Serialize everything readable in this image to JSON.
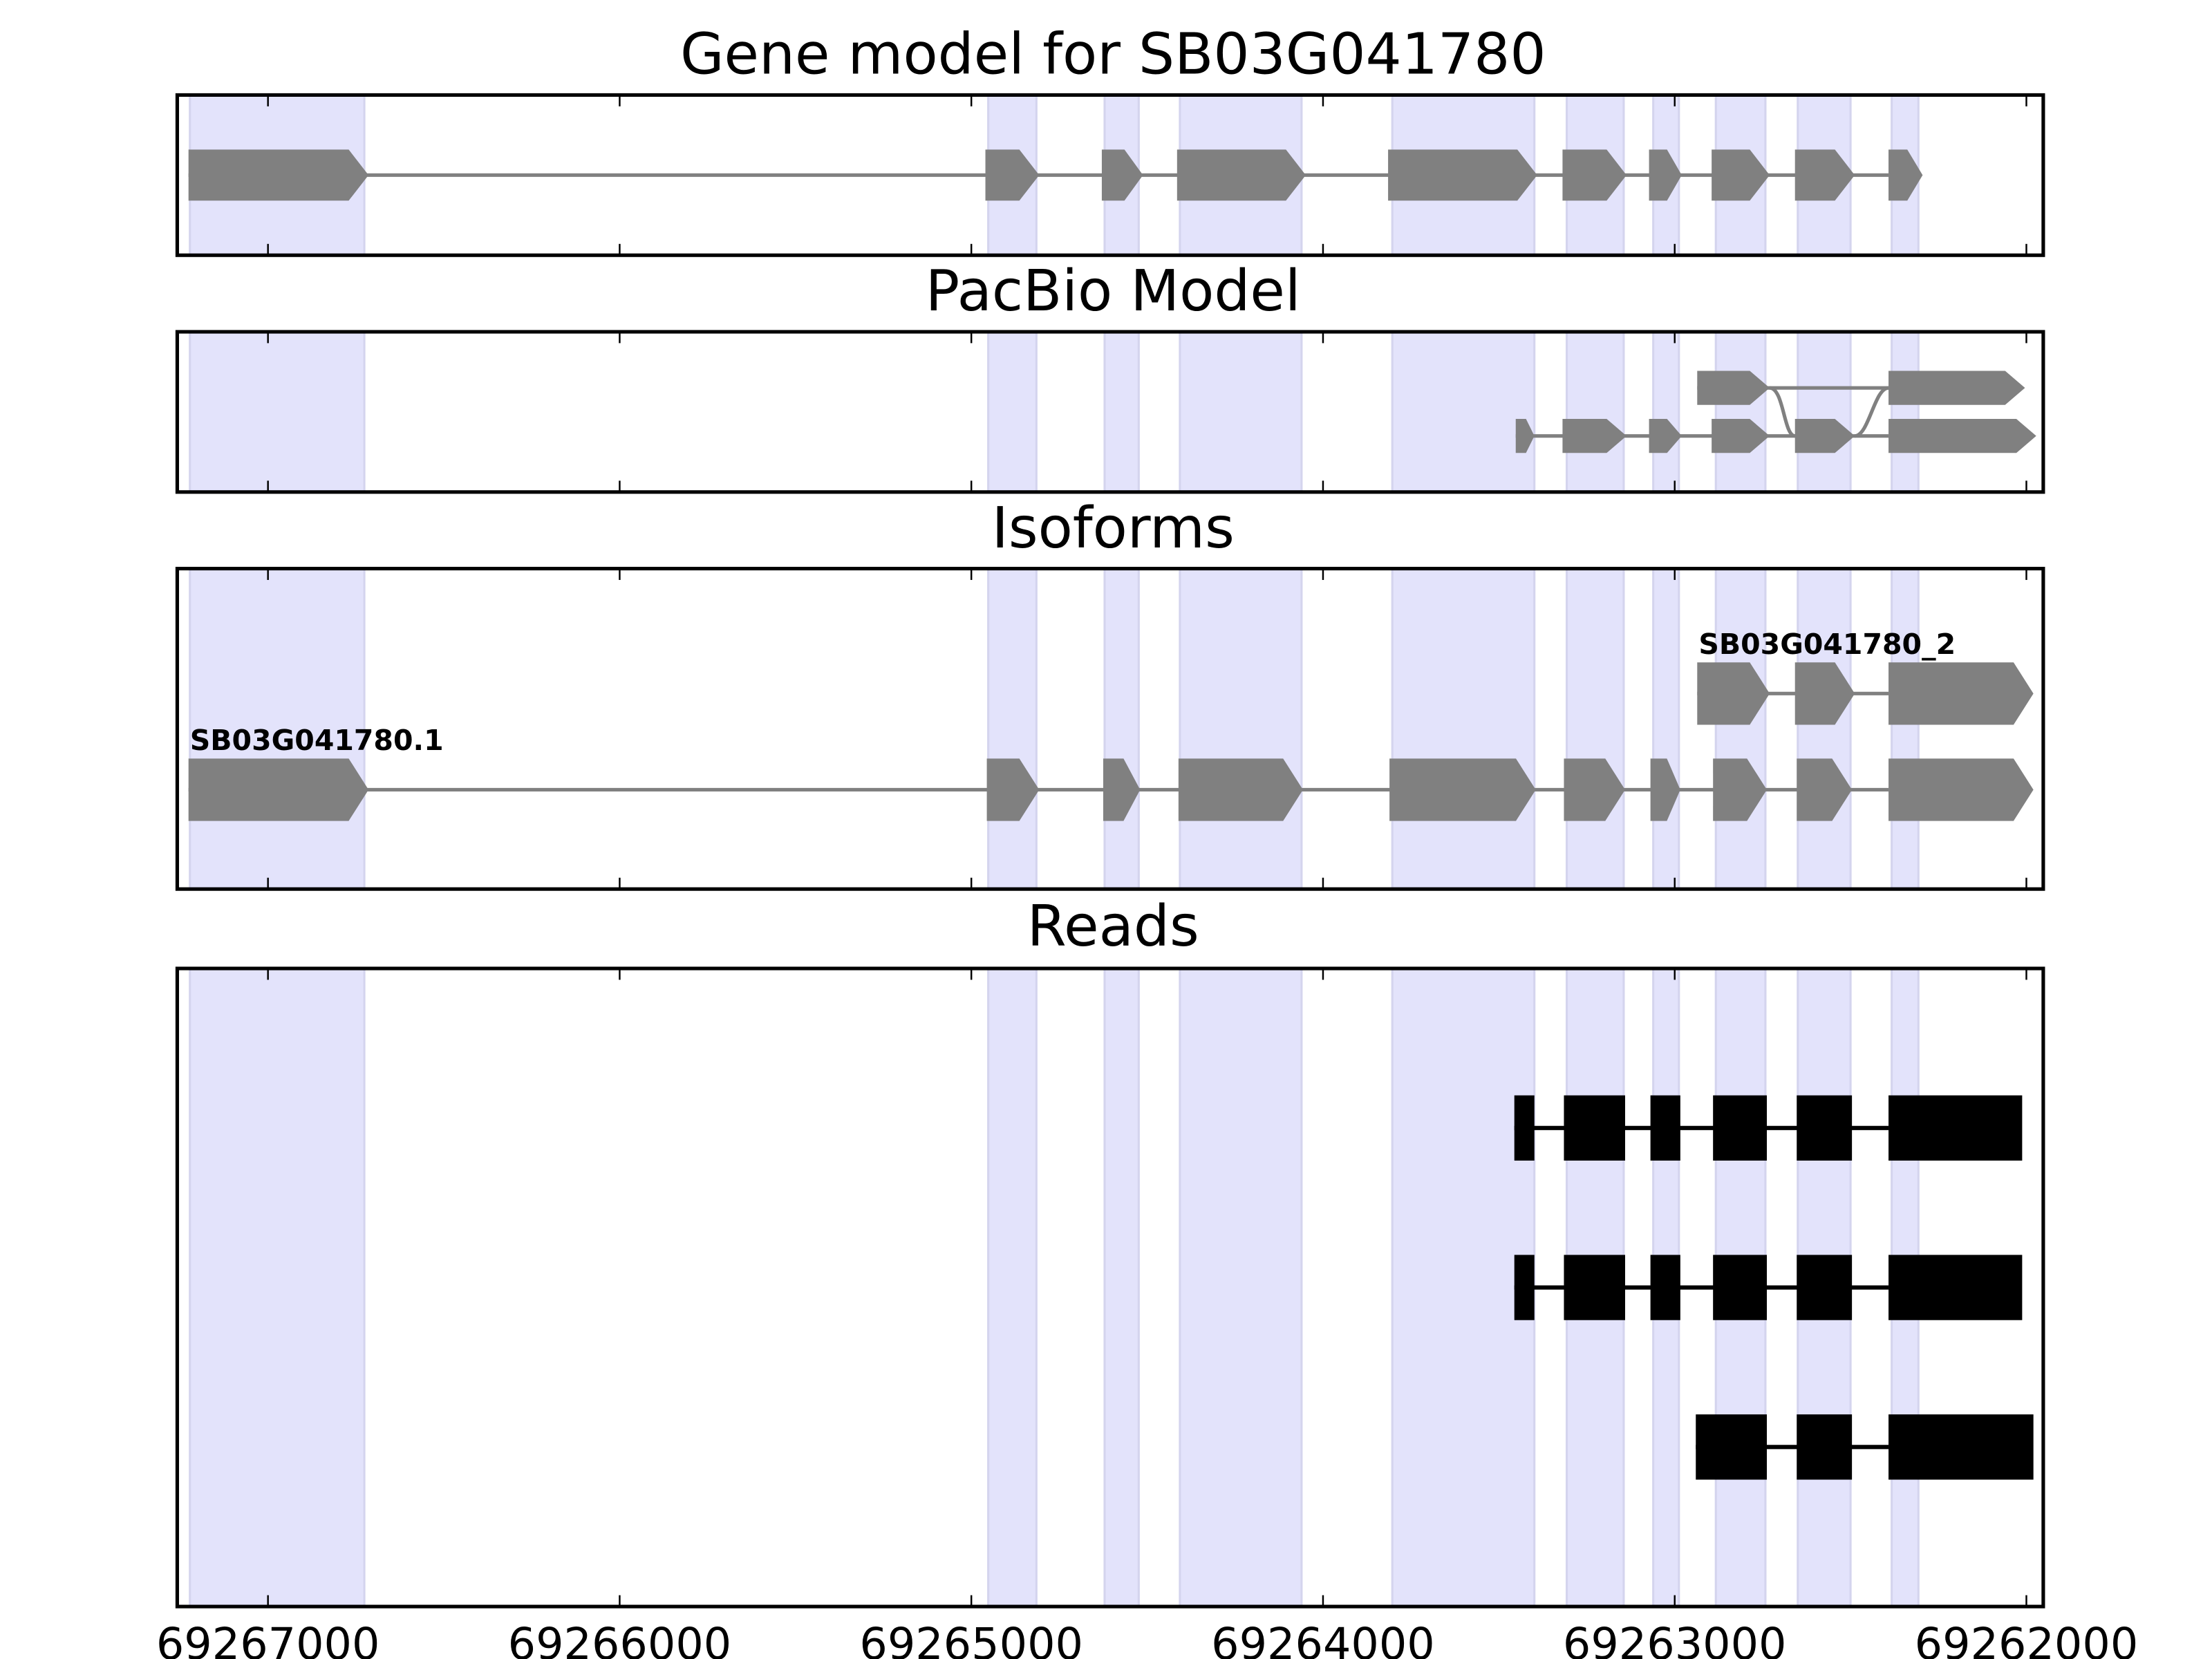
{
  "chart_data": {
    "type": "gene-track",
    "xlim": [
      69267258,
      69261952
    ],
    "x_reversed": true,
    "xticks": [
      69267000,
      69266000,
      69265000,
      69264000,
      69263000,
      69262000
    ],
    "xtick_labels": [
      "69267000",
      "69266000",
      "69265000",
      "69264000",
      "69263000",
      "69262000"
    ],
    "colors": {
      "shade": "#e3e3fb",
      "shade_edge": "#d4d4ee",
      "feature": "#808080",
      "read": "#000000",
      "frame": "#000000"
    },
    "shaded_regions": [
      [
        69267222,
        69266726
      ],
      [
        69264952,
        69264815
      ],
      [
        69264621,
        69264524
      ],
      [
        69264407,
        69264061
      ],
      [
        69263803,
        69263399
      ],
      [
        69263307,
        69263145
      ],
      [
        69263061,
        69262988
      ],
      [
        69262883,
        69262742
      ],
      [
        69262650,
        69262500
      ],
      [
        69262383,
        69262307
      ]
    ],
    "panels": [
      {
        "title": "Gene model for SB03G041780",
        "kind": "arrows",
        "tracks": [
          {
            "label": "",
            "row": 0.5,
            "exons": [
              [
                69267226,
                69266714
              ],
              [
                69264960,
                69264807
              ],
              [
                69264629,
                69264512
              ],
              [
                69264415,
                69264049
              ],
              [
                69263815,
                69263391
              ],
              [
                69263319,
                69263137
              ],
              [
                69263073,
                69262980
              ],
              [
                69262895,
                69262730
              ],
              [
                69262658,
                69262488
              ],
              [
                69262392,
                69262295
              ]
            ]
          }
        ]
      },
      {
        "title": "PacBio Model",
        "kind": "arrows",
        "tracks": [
          {
            "label": "",
            "row": 0.35,
            "exons": [
              [
                69262936,
                69262730
              ],
              [
                69262392,
                69262004
              ]
            ],
            "joins_lower_exon": [
              69262658,
              69262488
            ]
          },
          {
            "label": "",
            "row": 0.65,
            "exons": [
              [
                69263452,
                69263399
              ],
              [
                69263319,
                69263137
              ],
              [
                69263073,
                69262980
              ],
              [
                69262895,
                69262730
              ],
              [
                69262658,
                69262488
              ],
              [
                69262392,
                69261972
              ]
            ]
          }
        ]
      },
      {
        "title": "Isoforms",
        "kind": "arrows",
        "tracks": [
          {
            "label": "SB03G041780_2",
            "row": 0.39,
            "exons": [
              [
                69262936,
                69262730
              ],
              [
                69262658,
                69262488
              ],
              [
                69262392,
                69261980
              ]
            ]
          },
          {
            "label": "SB03G041780.1",
            "row": 0.69,
            "exons": [
              [
                69267226,
                69266714
              ],
              [
                69264956,
                69264807
              ],
              [
                69264625,
                69264520
              ],
              [
                69264411,
                69264057
              ],
              [
                69263811,
                69263395
              ],
              [
                69263315,
                69263141
              ],
              [
                69263069,
                69262984
              ],
              [
                69262891,
                69262738
              ],
              [
                69262653,
                69262496
              ],
              [
                69262392,
                69261980
              ]
            ]
          }
        ]
      },
      {
        "title": "Reads",
        "kind": "blocks",
        "tracks": [
          {
            "label": "",
            "row": 0.25,
            "exons": [
              [
                69263456,
                69263399
              ],
              [
                69263315,
                69263141
              ],
              [
                69263069,
                69262984
              ],
              [
                69262891,
                69262738
              ],
              [
                69262653,
                69262496
              ],
              [
                69262392,
                69262012
              ]
            ]
          },
          {
            "label": "",
            "row": 0.5,
            "exons": [
              [
                69263456,
                69263399
              ],
              [
                69263315,
                69263141
              ],
              [
                69263069,
                69262984
              ],
              [
                69262891,
                69262738
              ],
              [
                69262653,
                69262496
              ],
              [
                69262392,
                69262012
              ]
            ]
          },
          {
            "label": "",
            "row": 0.75,
            "exons": [
              [
                69262940,
                69262738
              ],
              [
                69262653,
                69262496
              ],
              [
                69262392,
                69261980
              ]
            ]
          }
        ]
      }
    ]
  }
}
